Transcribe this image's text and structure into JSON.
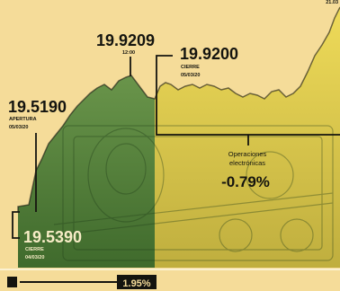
{
  "chart_data": {
    "type": "area",
    "x": [
      "CIERRE 04/03/20",
      "APERTURA 05/03/20",
      "12:00",
      "CIERRE 05/03/20"
    ],
    "y": [
      19.539,
      19.519,
      19.9209,
      19.92
    ],
    "annotations": [
      {
        "value": "19.5190",
        "label": "APERTURA",
        "date": "05/03/20"
      },
      {
        "value": "19.9209",
        "label": "12:00",
        "date": ""
      },
      {
        "value": "19.9200",
        "label": "CIERRE",
        "date": "05/03/20"
      },
      {
        "value": "19.5390",
        "label": "CIERRE",
        "date": "04/03/20"
      }
    ],
    "electronic": {
      "label_line1": "Operaciones",
      "label_line2": "electrónicas",
      "value": "-0.79%"
    },
    "bottom_bar": {
      "value": "1.95%"
    },
    "top_right_text": "21.03",
    "colors": {
      "background": "#f5dc99",
      "area_left": "#5c8a3c",
      "area_right": "#d8c64a",
      "ink": "#14140f",
      "rule": "#fbf1d1"
    }
  }
}
